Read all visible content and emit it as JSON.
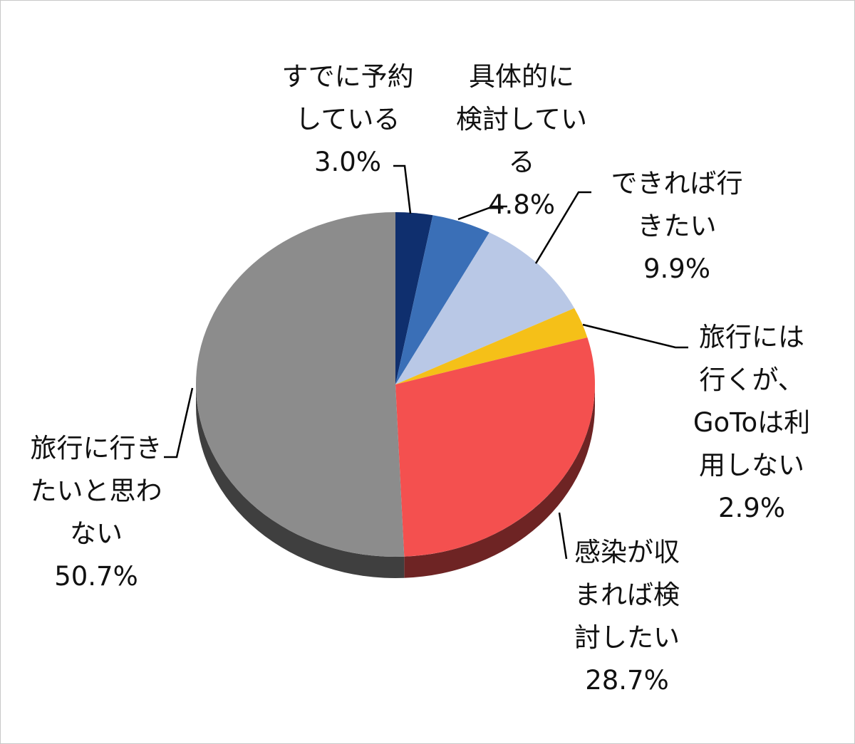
{
  "chart_data": {
    "type": "pie",
    "slices": [
      {
        "lines": [
          "すでに予約",
          "している"
        ],
        "value_label": "3.0%",
        "value": 3.0,
        "color": "#0f2f6e"
      },
      {
        "lines": [
          "具体的に",
          "検討してい",
          "る"
        ],
        "value_label": "4.8%",
        "value": 4.8,
        "color": "#3a6fb7"
      },
      {
        "lines": [
          "できれば行",
          "きたい"
        ],
        "value_label": "9.9%",
        "value": 9.9,
        "color": "#b9c8e6"
      },
      {
        "lines": [
          "旅行には",
          "行くが、",
          "GoToは利",
          "用しない"
        ],
        "value_label": "2.9%",
        "value": 2.9,
        "color": "#f5c018"
      },
      {
        "lines": [
          "感染が収",
          "まれば検",
          "討したい"
        ],
        "value_label": "28.7%",
        "value": 28.7,
        "color": "#f4504f"
      },
      {
        "lines": [
          "旅行に行き",
          "たいと思わ",
          "ない"
        ],
        "value_label": "50.7%",
        "value": 50.7,
        "color": "#8c8c8c"
      }
    ]
  }
}
